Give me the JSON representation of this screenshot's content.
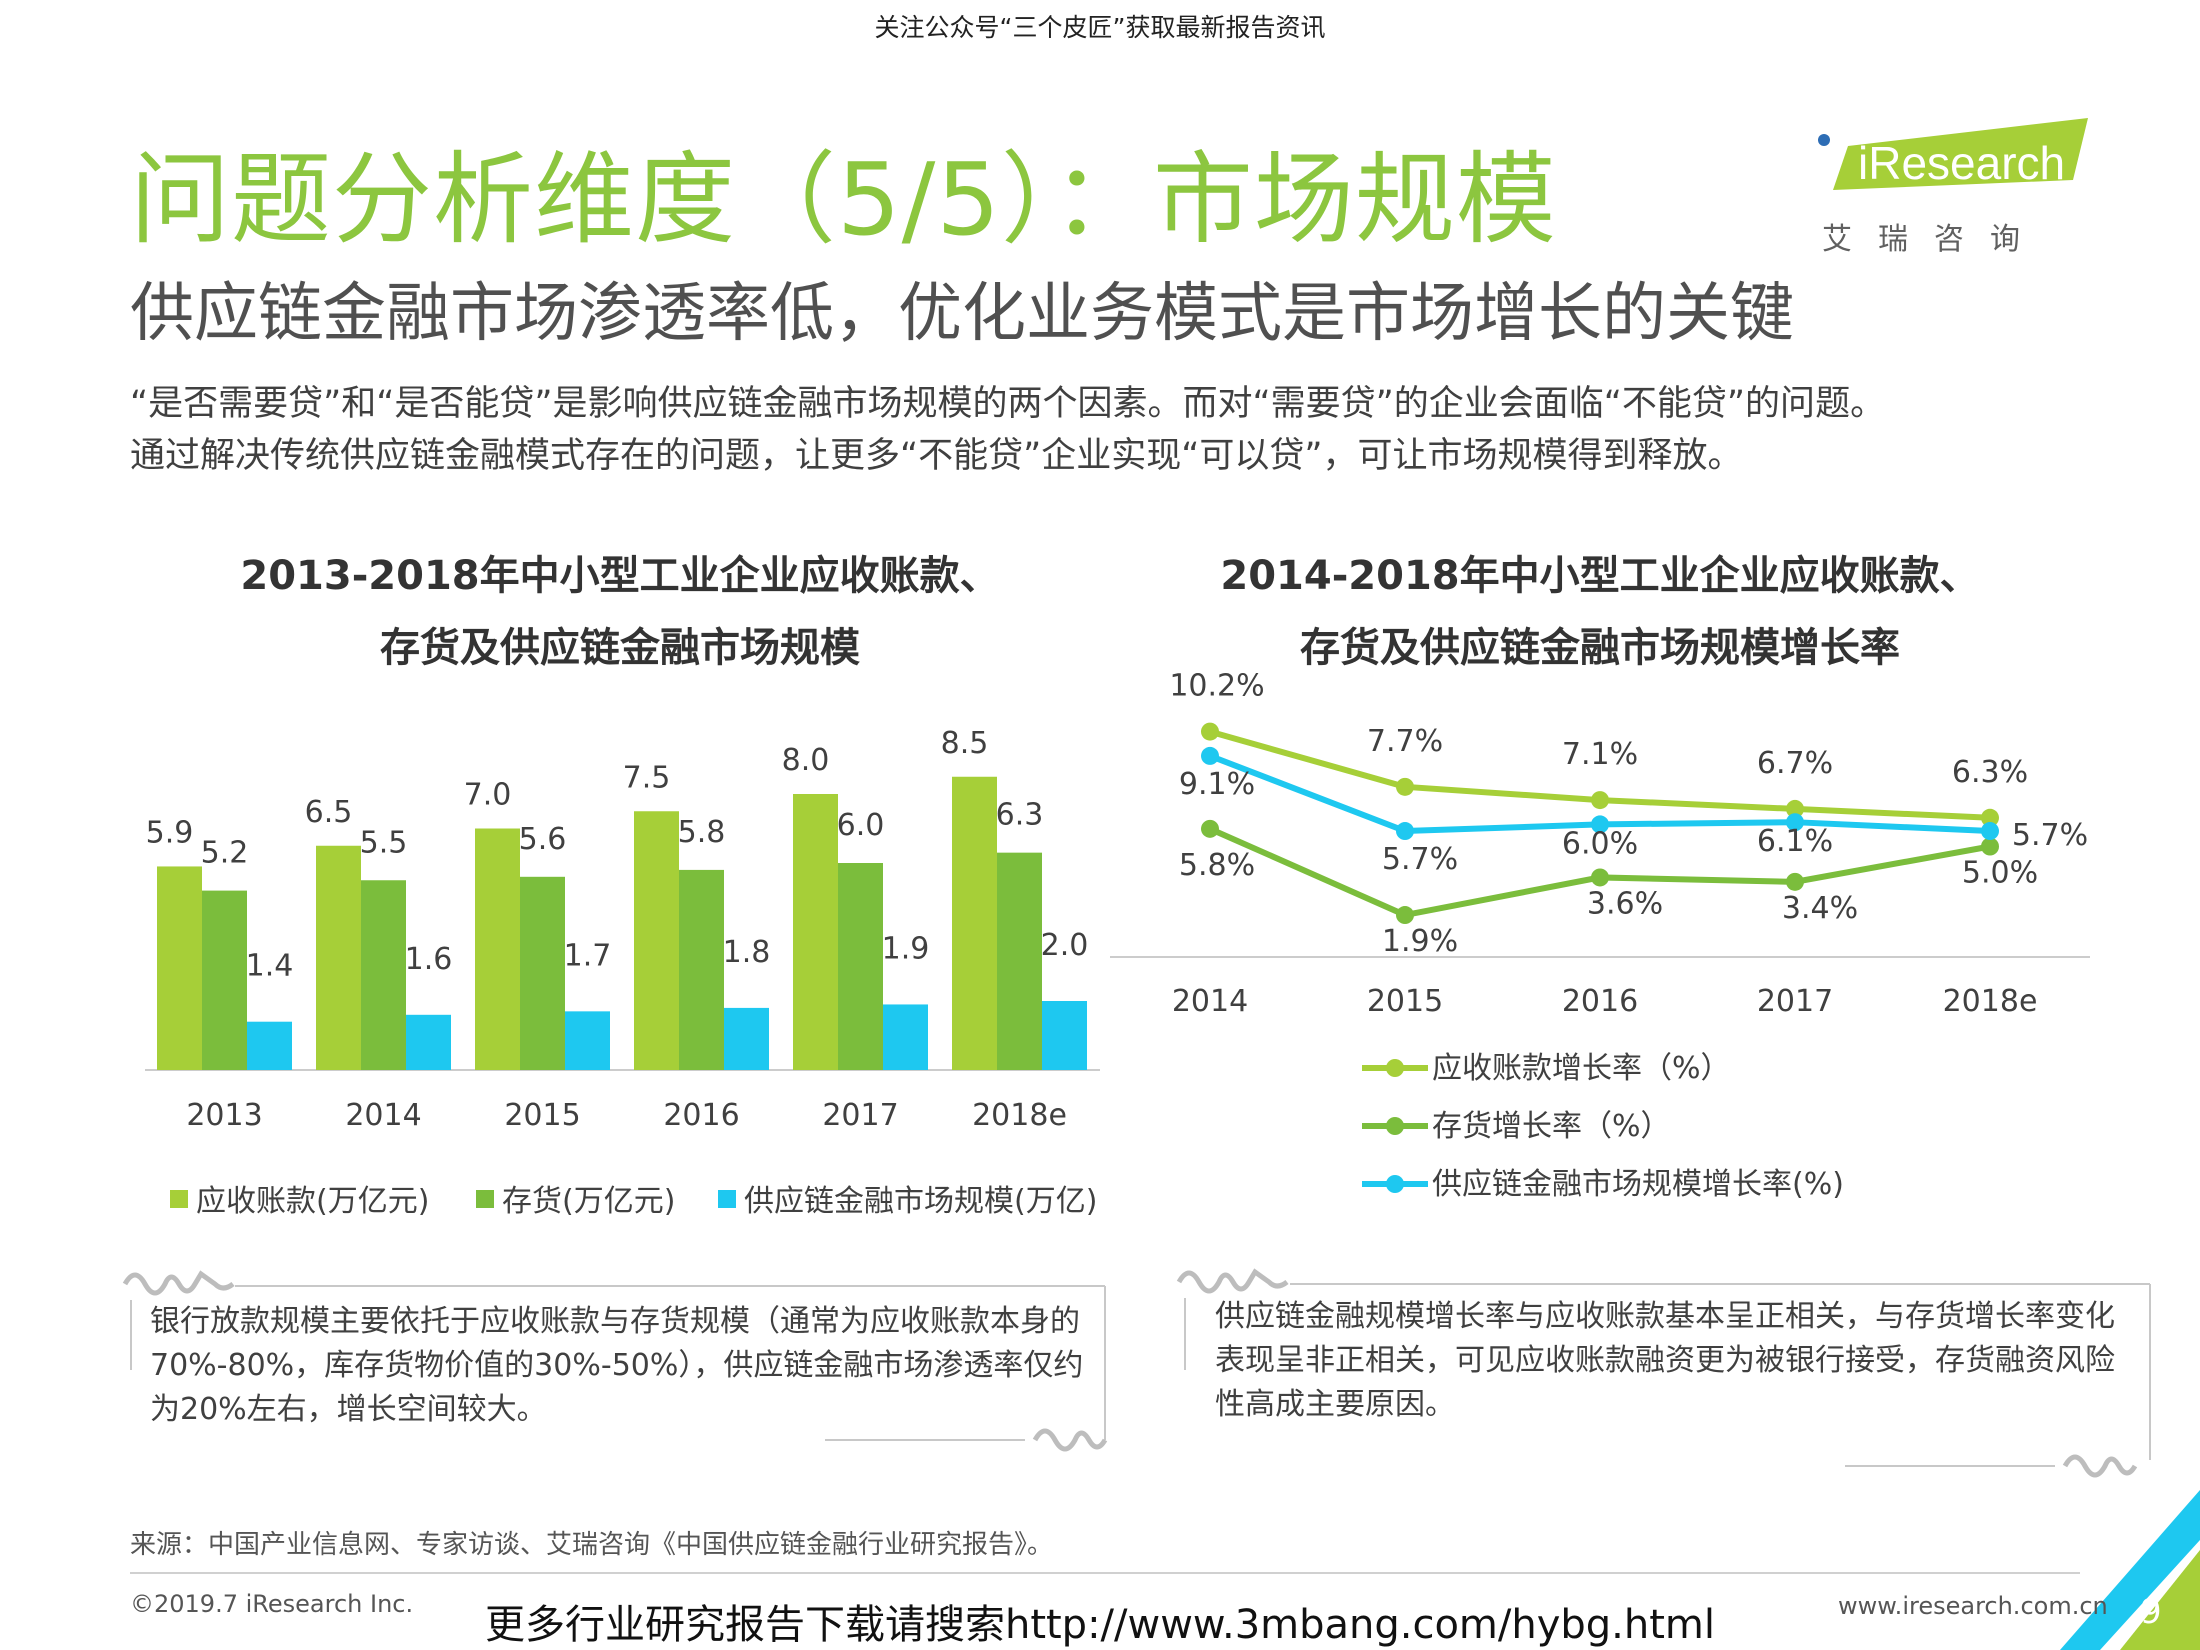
{
  "header": {
    "notice": "关注公众号“三个皮匠”获取最新报告资讯",
    "title": "问题分析维度（5/5）：市场规模",
    "subtitle": "供应链金融市场渗透率低，优化业务模式是市场增长的关键",
    "intro_line1": "“是否需要贷”和“是否能贷”是影响供应链金融市场规模的两个因素。而对“需要贷”的企业会面临“不能贷”的问题。",
    "intro_line2": "通过解决传统供应链金融模式存在的问题，让更多“不能贷”企业实现“可以贷”，可让市场规模得到释放。"
  },
  "logo": {
    "name": "iResearch",
    "cn": "艾瑞咨询"
  },
  "colors": {
    "green_light": "#a6cf38",
    "green": "#7bbd3c",
    "cyan": "#1ec8f0",
    "title_green": "#8cc63f"
  },
  "chart_data": [
    {
      "type": "bar",
      "title": [
        "2013-2018年中小型工业企业应收账款、",
        "存货及供应链金融市场规模"
      ],
      "categories": [
        "2013",
        "2014",
        "2015",
        "2016",
        "2017",
        "2018e"
      ],
      "series": [
        {
          "name": "应收账款(万亿元)",
          "color": "#a6cf38",
          "values": [
            5.9,
            6.5,
            7.0,
            7.5,
            8.0,
            8.5
          ],
          "labels": [
            "5.9",
            "6.5",
            "7.0",
            "7.5",
            "8.0",
            "8.5"
          ]
        },
        {
          "name": "存货(万亿元)",
          "color": "#7bbd3c",
          "values": [
            5.2,
            5.5,
            5.6,
            5.8,
            6.0,
            6.3
          ],
          "labels": [
            "5.2",
            "5.5",
            "5.6",
            "5.8",
            "6.0",
            "6.3"
          ]
        },
        {
          "name": "供应链金融市场规模(万亿)",
          "color": "#1ec8f0",
          "values": [
            1.4,
            1.6,
            1.7,
            1.8,
            1.9,
            2.0
          ],
          "labels": [
            "1.4",
            "1.6",
            "1.7",
            "1.8",
            "1.9",
            "2.0"
          ]
        }
      ],
      "legend": "bottom"
    },
    {
      "type": "line",
      "title": [
        "2014-2018年中小型工业企业应收账款、",
        "存货及供应链金融市场规模增长率"
      ],
      "categories": [
        "2014",
        "2015",
        "2016",
        "2017",
        "2018e"
      ],
      "series": [
        {
          "name": "应收账款增长率（%）",
          "color": "#a6cf38",
          "values": [
            10.2,
            7.7,
            7.1,
            6.7,
            6.3
          ],
          "labels": [
            "10.2%",
            "7.7%",
            "7.1%",
            "6.7%",
            "6.3%"
          ]
        },
        {
          "name": "存货增长率（%）",
          "color": "#7bbd3c",
          "values": [
            5.8,
            1.9,
            3.6,
            3.4,
            5.0
          ],
          "labels": [
            "5.8%",
            "1.9%",
            "3.6%",
            "3.4%",
            "5.0%"
          ]
        },
        {
          "name": "供应链金融市场规模增长率(%)",
          "color": "#1ec8f0",
          "values": [
            9.1,
            5.7,
            6.0,
            6.1,
            5.7
          ],
          "labels": [
            "9.1%",
            "5.7%",
            "6.0%",
            "6.1%",
            "5.7%"
          ]
        }
      ],
      "legend": "bottom"
    }
  ],
  "notes": {
    "left": "银行放款规模主要依托于应收账款与存货规模（通常为应收账款本身的70%-80%，库存货物价值的30%-50%），供应链金融市场渗透率仅约为20%左右，增长空间较大。",
    "right": "供应链金融规模增长率与应收账款基本呈正相关，与存货增长率变化表现呈非正相关，可见应收账款融资更为被银行接受，存货融资风险性高成主要原因。"
  },
  "footer": {
    "source": "来源：中国产业信息网、专家访谈、艾瑞咨询《中国供应链金融行业研究报告》。",
    "copyright": "©2019.7 iResearch Inc.",
    "promo": "更多行业研究报告下载请搜索http://www.3mbang.com/hybg.html",
    "site": "www.iresearch.com.cn",
    "page": "9"
  }
}
